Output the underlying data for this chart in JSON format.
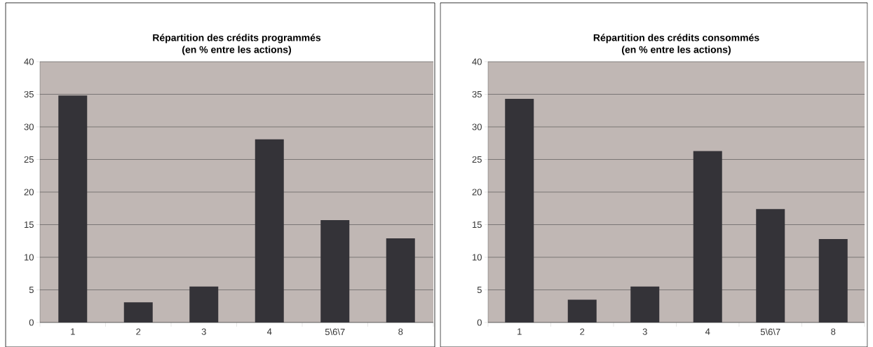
{
  "chart_data": [
    {
      "type": "bar",
      "title": "Répartition des crédits programmés",
      "subtitle": "(en % entre les actions)",
      "categories": [
        "1",
        "2",
        "3",
        "4",
        "5\\6\\7",
        "8"
      ],
      "values": [
        34.8,
        3.1,
        5.5,
        28.1,
        15.7,
        12.9
      ],
      "color": "#343338",
      "ylim": [
        0,
        40
      ],
      "yticks": [
        0,
        5,
        10,
        15,
        20,
        25,
        30,
        35,
        40
      ],
      "grid": "y"
    },
    {
      "type": "bar",
      "title": "Répartition des crédits consommés",
      "subtitle": "(en % entre les actions)",
      "categories": [
        "1",
        "2",
        "3",
        "4",
        "5\\6\\7",
        "8"
      ],
      "values": [
        34.3,
        3.5,
        5.5,
        26.3,
        17.4,
        12.8
      ],
      "color": "#343338",
      "ylim": [
        0,
        40
      ],
      "yticks": [
        0,
        5,
        10,
        15,
        20,
        25,
        30,
        35,
        40
      ],
      "grid": "y"
    }
  ]
}
